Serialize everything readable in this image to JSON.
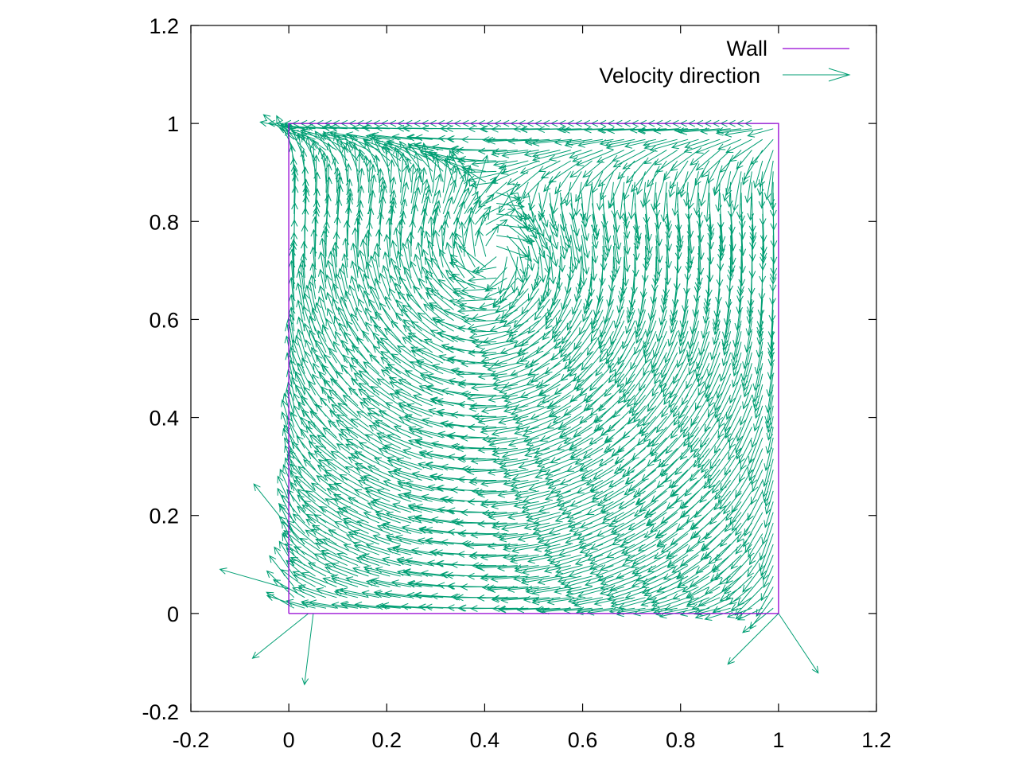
{
  "chart_data": {
    "type": "vector-field",
    "title": "",
    "xlabel": "",
    "ylabel": "",
    "xlim": [
      -0.2,
      1.2
    ],
    "ylim": [
      -0.2,
      1.2
    ],
    "xticks": [
      "-0.2",
      "0",
      "0.2",
      "0.4",
      "0.6",
      "0.8",
      "1",
      "1.2"
    ],
    "xtick_values": [
      -0.2,
      0,
      0.2,
      0.4,
      0.6,
      0.8,
      1,
      1.2
    ],
    "yticks": [
      "-0.2",
      "0",
      "0.2",
      "0.4",
      "0.6",
      "0.8",
      "1",
      "1.2"
    ],
    "ytick_values": [
      -0.2,
      0,
      0.2,
      0.4,
      0.6,
      0.8,
      1,
      1.2
    ],
    "grid": false,
    "legend_position": "top-right",
    "series": [
      {
        "name": "Wall",
        "kind": "line",
        "color": "#9400d3",
        "points": [
          [
            0,
            0
          ],
          [
            1,
            0
          ],
          [
            1,
            1
          ],
          [
            0,
            1
          ],
          [
            0,
            0
          ]
        ]
      },
      {
        "name": "Velocity direction",
        "kind": "vectors",
        "color": "#009e73",
        "domain": {
          "x": [
            0,
            1
          ],
          "y": [
            0,
            1
          ]
        },
        "vortex_center": [
          0.42,
          0.72
        ],
        "lid_y": 1.0,
        "lid_velocity_direction": "left"
      }
    ]
  }
}
